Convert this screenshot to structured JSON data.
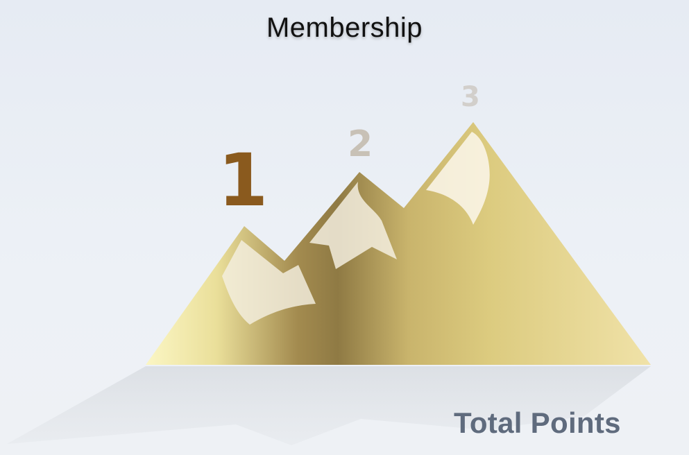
{
  "header": {
    "title": "Membership"
  },
  "tiers": [
    {
      "label": "1",
      "color": "#8a5a1e"
    },
    {
      "label": "2",
      "color": "#c8c1b6"
    },
    {
      "label": "3",
      "color": "#d2cfcb"
    }
  ],
  "footer": {
    "total_points_label": "Total Points"
  },
  "colors": {
    "mountain_gold": "#d9c67a",
    "mountain_dark": "#8c7a45",
    "snow": "#f4efe0",
    "background": "#e9edf3"
  }
}
